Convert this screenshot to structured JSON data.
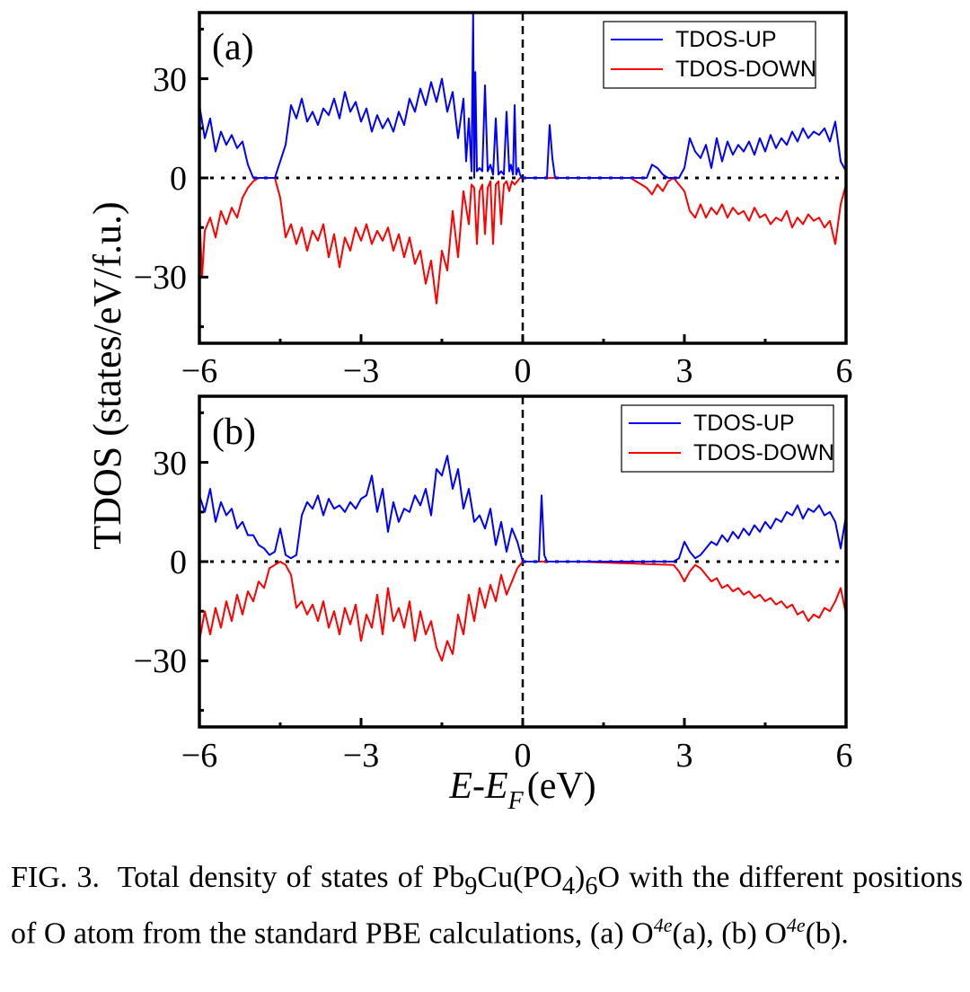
{
  "figure": {
    "ylabel": "TDOS (states/eV/f.u.)",
    "xlabel_main": "E-E",
    "xlabel_sub": "F",
    "xlabel_unit": "(eV)"
  },
  "caption": {
    "label": "FIG. 3.",
    "text_1": "Total density of states of ",
    "formula_pb": "Pb",
    "formula_9": "9",
    "formula_cu": "Cu(PO",
    "formula_4": "4",
    "formula_close": ")",
    "formula_6": "6",
    "formula_o": "O",
    "text_2": " with the different positions of O atom from the standard PBE calculations, ",
    "part_a": "(a) O",
    "sup_a": "4e",
    "suffix_a": "(a), ",
    "part_b": "(b) O",
    "sup_b": "4e",
    "suffix_b": "(b)."
  },
  "colors": {
    "up": "#0000ff",
    "down": "#ff0000",
    "axis": "#000000"
  },
  "chart_data": [
    {
      "type": "line",
      "panel_label": "(a)",
      "xlim": [
        -6,
        6
      ],
      "ylim": [
        -50,
        50
      ],
      "xticks": [
        -6,
        -3,
        0,
        3,
        6
      ],
      "xtick_labels": [
        "−6",
        "−3",
        "0",
        "3",
        "6"
      ],
      "yticks": [
        -30,
        0,
        30
      ],
      "ytick_labels": [
        "−30",
        "0",
        "30"
      ],
      "legend_position": "top-right",
      "reference_lines": {
        "vertical_x": 0,
        "horizontal_y": 0
      },
      "series": [
        {
          "name": "TDOS-UP",
          "x": [
            -6.0,
            -5.9,
            -5.8,
            -5.7,
            -5.6,
            -5.5,
            -5.4,
            -5.3,
            -5.2,
            -5.1,
            -5.0,
            -4.9,
            -4.8,
            -4.7,
            -4.6,
            -4.5,
            -4.4,
            -4.3,
            -4.2,
            -4.1,
            -4.0,
            -3.9,
            -3.8,
            -3.7,
            -3.6,
            -3.5,
            -3.4,
            -3.3,
            -3.2,
            -3.1,
            -3.0,
            -2.9,
            -2.8,
            -2.7,
            -2.6,
            -2.5,
            -2.4,
            -2.3,
            -2.2,
            -2.1,
            -2.0,
            -1.9,
            -1.8,
            -1.7,
            -1.6,
            -1.5,
            -1.4,
            -1.3,
            -1.2,
            -1.1,
            -1.05,
            -1.0,
            -0.95,
            -0.92,
            -0.9,
            -0.88,
            -0.85,
            -0.8,
            -0.75,
            -0.7,
            -0.65,
            -0.6,
            -0.55,
            -0.5,
            -0.45,
            -0.4,
            -0.35,
            -0.3,
            -0.25,
            -0.22,
            -0.18,
            -0.15,
            -0.12,
            -0.08,
            -0.05,
            -0.02,
            0.0,
            0.3,
            0.45,
            0.5,
            0.55,
            0.6,
            1.0,
            2.0,
            2.3,
            2.4,
            2.5,
            2.6,
            2.7,
            2.8,
            2.9,
            3.0,
            3.1,
            3.2,
            3.3,
            3.4,
            3.5,
            3.6,
            3.7,
            3.8,
            3.9,
            4.0,
            4.1,
            4.2,
            4.3,
            4.4,
            4.5,
            4.6,
            4.7,
            4.8,
            4.9,
            5.0,
            5.1,
            5.2,
            5.3,
            5.4,
            5.5,
            5.6,
            5.7,
            5.8,
            5.9,
            6.0
          ],
          "y": [
            22,
            12,
            18,
            8,
            14,
            10,
            13,
            9,
            11,
            4,
            0,
            0,
            0,
            0,
            0,
            5,
            10,
            22,
            18,
            24,
            17,
            20,
            16,
            21,
            19,
            24,
            18,
            26,
            20,
            23,
            17,
            21,
            14,
            19,
            15,
            18,
            14,
            20,
            16,
            24,
            20,
            27,
            22,
            29,
            23,
            30,
            20,
            26,
            12,
            24,
            5,
            18,
            2,
            50,
            0,
            32,
            2,
            3,
            2,
            28,
            2,
            4,
            1,
            18,
            1,
            2,
            1,
            20,
            2,
            4,
            1,
            22,
            1,
            3,
            1,
            0,
            0,
            0,
            0,
            16,
            6,
            0,
            0,
            0,
            0,
            4,
            3,
            1,
            0,
            0,
            0,
            3,
            12,
            8,
            6,
            10,
            3,
            12,
            5,
            11,
            7,
            10,
            8,
            11,
            7,
            12,
            8,
            13,
            9,
            12,
            10,
            14,
            11,
            15,
            12,
            14,
            13,
            15,
            11,
            17,
            5,
            2
          ]
        },
        {
          "name": "TDOS-DOWN",
          "x": [
            -6.0,
            -5.95,
            -5.9,
            -5.8,
            -5.7,
            -5.6,
            -5.5,
            -5.4,
            -5.3,
            -5.2,
            -5.1,
            -5.0,
            -4.9,
            -4.8,
            -4.7,
            -4.6,
            -4.5,
            -4.4,
            -4.3,
            -4.2,
            -4.1,
            -4.0,
            -3.9,
            -3.8,
            -3.7,
            -3.6,
            -3.5,
            -3.4,
            -3.3,
            -3.2,
            -3.1,
            -3.0,
            -2.9,
            -2.8,
            -2.7,
            -2.6,
            -2.5,
            -2.4,
            -2.3,
            -2.2,
            -2.1,
            -2.0,
            -1.9,
            -1.8,
            -1.7,
            -1.6,
            -1.5,
            -1.4,
            -1.3,
            -1.2,
            -1.1,
            -1.0,
            -0.95,
            -0.9,
            -0.85,
            -0.8,
            -0.75,
            -0.7,
            -0.65,
            -0.6,
            -0.55,
            -0.5,
            -0.45,
            -0.4,
            -0.35,
            -0.3,
            -0.25,
            -0.2,
            -0.15,
            -0.1,
            -0.05,
            0.0,
            1.0,
            2.0,
            2.3,
            2.4,
            2.5,
            2.6,
            2.7,
            2.8,
            2.9,
            3.0,
            3.1,
            3.2,
            3.3,
            3.4,
            3.5,
            3.6,
            3.7,
            3.8,
            3.9,
            4.0,
            4.1,
            4.2,
            4.3,
            4.4,
            4.5,
            4.6,
            4.7,
            4.8,
            4.9,
            5.0,
            5.1,
            5.2,
            5.3,
            5.4,
            5.5,
            5.6,
            5.7,
            5.8,
            5.9,
            6.0
          ],
          "y": [
            -10,
            -30,
            -16,
            -12,
            -18,
            -10,
            -14,
            -9,
            -12,
            -6,
            -3,
            -1,
            0,
            0,
            0,
            0,
            -6,
            -18,
            -14,
            -20,
            -15,
            -22,
            -16,
            -19,
            -14,
            -24,
            -17,
            -27,
            -18,
            -22,
            -15,
            -19,
            -14,
            -20,
            -16,
            -19,
            -15,
            -22,
            -17,
            -24,
            -18,
            -26,
            -22,
            -32,
            -25,
            -38,
            -22,
            -28,
            -10,
            -24,
            -4,
            -14,
            -2,
            -3,
            -20,
            -4,
            -2,
            -17,
            -3,
            -1,
            -20,
            -2,
            -1,
            -14,
            -2,
            -1,
            -4,
            -1,
            -2,
            -1,
            0,
            0,
            0,
            0,
            -3,
            -5,
            -2,
            -4,
            -1,
            0,
            -2,
            -4,
            -10,
            -12,
            -8,
            -12,
            -9,
            -11,
            -8,
            -12,
            -9,
            -11,
            -10,
            -13,
            -9,
            -12,
            -11,
            -14,
            -12,
            -13,
            -10,
            -15,
            -12,
            -14,
            -11,
            -13,
            -12,
            -15,
            -13,
            -20,
            -8,
            -2
          ]
        }
      ]
    },
    {
      "type": "line",
      "panel_label": "(b)",
      "xlim": [
        -6,
        6
      ],
      "ylim": [
        -50,
        50
      ],
      "xticks": [
        -6,
        -3,
        0,
        3,
        6
      ],
      "xtick_labels": [
        "−6",
        "−3",
        "0",
        "3",
        "6"
      ],
      "yticks": [
        -30,
        0,
        30
      ],
      "ytick_labels": [
        "−30",
        "0",
        "30"
      ],
      "legend_position": "top-right",
      "reference_lines": {
        "vertical_x": 0,
        "horizontal_y": 0
      },
      "series": [
        {
          "name": "TDOS-UP",
          "x": [
            -6.0,
            -5.9,
            -5.8,
            -5.7,
            -5.6,
            -5.5,
            -5.4,
            -5.3,
            -5.2,
            -5.1,
            -5.0,
            -4.9,
            -4.8,
            -4.7,
            -4.6,
            -4.5,
            -4.4,
            -4.3,
            -4.2,
            -4.1,
            -4.0,
            -3.9,
            -3.8,
            -3.7,
            -3.6,
            -3.5,
            -3.4,
            -3.3,
            -3.2,
            -3.1,
            -3.0,
            -2.9,
            -2.8,
            -2.7,
            -2.6,
            -2.5,
            -2.4,
            -2.3,
            -2.2,
            -2.1,
            -2.0,
            -1.9,
            -1.8,
            -1.7,
            -1.6,
            -1.5,
            -1.4,
            -1.3,
            -1.2,
            -1.1,
            -1.0,
            -0.9,
            -0.8,
            -0.7,
            -0.6,
            -0.5,
            -0.4,
            -0.3,
            -0.2,
            -0.1,
            0.0,
            0.3,
            0.35,
            0.4,
            0.45,
            1.0,
            2.8,
            2.9,
            3.0,
            3.1,
            3.2,
            3.3,
            3.4,
            3.5,
            3.6,
            3.7,
            3.8,
            3.9,
            4.0,
            4.1,
            4.2,
            4.3,
            4.4,
            4.5,
            4.6,
            4.7,
            4.8,
            4.9,
            5.0,
            5.1,
            5.2,
            5.3,
            5.4,
            5.5,
            5.6,
            5.7,
            5.8,
            5.9,
            6.0
          ],
          "y": [
            20,
            15,
            22,
            12,
            18,
            14,
            16,
            10,
            12,
            8,
            8,
            5,
            4,
            2,
            3,
            10,
            2,
            1,
            2,
            14,
            18,
            16,
            20,
            14,
            19,
            16,
            17,
            15,
            18,
            16,
            19,
            20,
            26,
            15,
            22,
            9,
            18,
            12,
            16,
            15,
            20,
            17,
            22,
            14,
            28,
            26,
            32,
            22,
            28,
            16,
            22,
            12,
            14,
            10,
            16,
            5,
            12,
            3,
            10,
            6,
            0,
            0,
            20,
            2,
            0,
            0,
            0,
            1,
            6,
            3,
            1,
            2,
            4,
            6,
            5,
            8,
            6,
            9,
            7,
            10,
            8,
            11,
            9,
            12,
            10,
            13,
            12,
            15,
            14,
            17,
            13,
            16,
            15,
            17,
            14,
            15,
            12,
            4,
            14
          ]
        },
        {
          "name": "TDOS-DOWN",
          "x": [
            -6.0,
            -5.9,
            -5.8,
            -5.7,
            -5.6,
            -5.5,
            -5.4,
            -5.3,
            -5.2,
            -5.1,
            -5.0,
            -4.9,
            -4.8,
            -4.7,
            -4.6,
            -4.5,
            -4.4,
            -4.3,
            -4.2,
            -4.1,
            -4.0,
            -3.9,
            -3.8,
            -3.7,
            -3.6,
            -3.5,
            -3.4,
            -3.3,
            -3.2,
            -3.1,
            -3.0,
            -2.9,
            -2.8,
            -2.7,
            -2.6,
            -2.5,
            -2.4,
            -2.3,
            -2.2,
            -2.1,
            -2.0,
            -1.9,
            -1.8,
            -1.7,
            -1.6,
            -1.5,
            -1.4,
            -1.3,
            -1.2,
            -1.1,
            -1.0,
            -0.9,
            -0.8,
            -0.7,
            -0.6,
            -0.5,
            -0.4,
            -0.3,
            -0.2,
            -0.1,
            0.0,
            1.0,
            2.8,
            2.9,
            3.0,
            3.1,
            3.2,
            3.3,
            3.4,
            3.5,
            3.6,
            3.7,
            3.8,
            3.9,
            4.0,
            4.1,
            4.2,
            4.3,
            4.4,
            4.5,
            4.6,
            4.7,
            4.8,
            4.9,
            5.0,
            5.1,
            5.2,
            5.3,
            5.4,
            5.5,
            5.6,
            5.7,
            5.8,
            5.9,
            6.0
          ],
          "y": [
            -24,
            -15,
            -22,
            -14,
            -20,
            -12,
            -18,
            -10,
            -16,
            -9,
            -12,
            -6,
            -8,
            -2,
            -1,
            0,
            -1,
            -4,
            -14,
            -12,
            -16,
            -13,
            -18,
            -12,
            -20,
            -15,
            -22,
            -14,
            -19,
            -13,
            -24,
            -16,
            -20,
            -10,
            -22,
            -8,
            -18,
            -14,
            -20,
            -12,
            -24,
            -15,
            -22,
            -18,
            -26,
            -30,
            -24,
            -28,
            -16,
            -22,
            -10,
            -18,
            -8,
            -14,
            -7,
            -12,
            -4,
            -10,
            -6,
            -2,
            0,
            0,
            -1,
            -3,
            -6,
            -3,
            -1,
            -2,
            -4,
            -6,
            -5,
            -8,
            -7,
            -9,
            -8,
            -10,
            -9,
            -11,
            -10,
            -12,
            -11,
            -13,
            -12,
            -14,
            -13,
            -16,
            -15,
            -18,
            -16,
            -17,
            -14,
            -15,
            -12,
            -8,
            -16
          ]
        }
      ]
    }
  ]
}
